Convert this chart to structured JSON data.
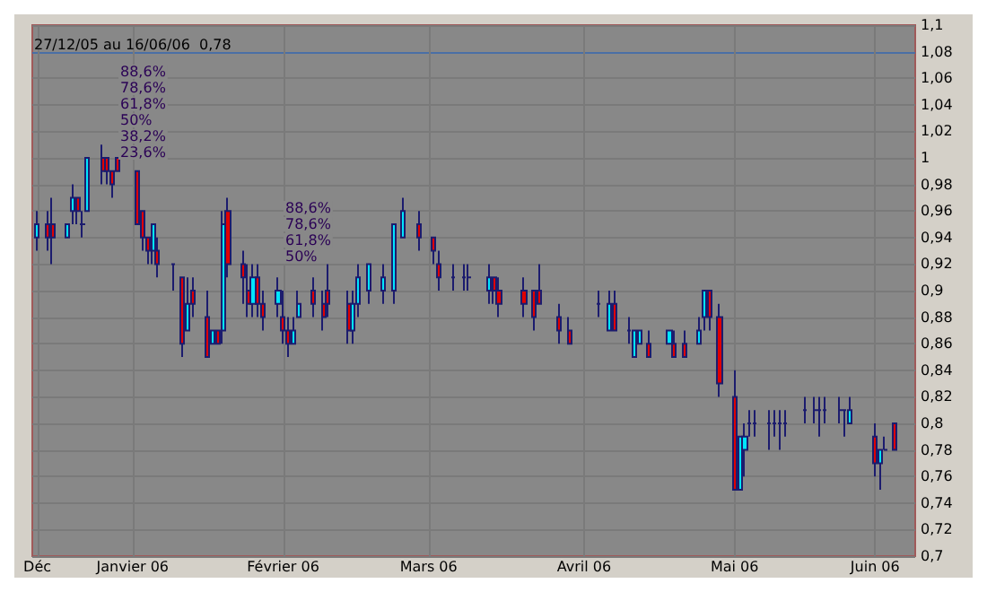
{
  "chart_data": {
    "type": "candlestick",
    "title": "27/12/05 au 16/06/06  0,78",
    "x": [
      "2005-12-27",
      "2005-12-29",
      "2005-12-30",
      "2006-01-02",
      "2006-01-03",
      "2006-01-04",
      "2006-01-05",
      "2006-01-06",
      "2006-01-09",
      "2006-01-10",
      "2006-01-11",
      "2006-01-12",
      "2006-01-16",
      "2006-01-17",
      "2006-01-18",
      "2006-01-19",
      "2006-01-20",
      "2006-01-23",
      "2006-01-25",
      "2006-01-26",
      "2006-01-27",
      "2006-01-30",
      "2006-01-31",
      "2006-02-01",
      "2006-02-02",
      "2006-02-03",
      "2006-02-06",
      "2006-02-07",
      "2006-02-08",
      "2006-02-09",
      "2006-02-10",
      "2006-02-13",
      "2006-02-14",
      "2006-02-15",
      "2006-02-16",
      "2006-02-17",
      "2006-02-20",
      "2006-02-22",
      "2006-02-23",
      "2006-02-27",
      "2006-02-28",
      "2006-03-01",
      "2006-03-03",
      "2006-03-06",
      "2006-03-08",
      "2006-03-10",
      "2006-03-13",
      "2006-03-16",
      "2006-03-17",
      "2006-03-20",
      "2006-03-22",
      "2006-03-23",
      "2006-03-27",
      "2006-03-28",
      "2006-03-29",
      "2006-04-03",
      "2006-04-05",
      "2006-04-06",
      "2006-04-10",
      "2006-04-12",
      "2006-04-18",
      "2006-04-20",
      "2006-04-21",
      "2006-04-24",
      "2006-04-25",
      "2006-04-26",
      "2006-04-28",
      "2006-05-02",
      "2006-05-03",
      "2006-05-05",
      "2006-05-08",
      "2006-05-09",
      "2006-05-10",
      "2006-05-12",
      "2006-05-15",
      "2006-05-16",
      "2006-05-17",
      "2006-05-18",
      "2006-05-19",
      "2006-05-22",
      "2006-05-23",
      "2006-05-24",
      "2006-05-25",
      "2006-05-29",
      "2006-05-31",
      "2006-06-01",
      "2006-06-02",
      "2006-06-05",
      "2006-06-06",
      "2006-06-07",
      "2006-06-12",
      "2006-06-13",
      "2006-06-14",
      "2006-06-16"
    ],
    "ohlc": [
      [
        0.94,
        0.96,
        0.93,
        0.95
      ],
      [
        0.95,
        0.96,
        0.93,
        0.94
      ],
      [
        0.95,
        0.97,
        0.92,
        0.94
      ],
      [
        0.94,
        0.95,
        0.94,
        0.95
      ],
      [
        0.96,
        0.98,
        0.95,
        0.97
      ],
      [
        0.97,
        0.97,
        0.95,
        0.96
      ],
      [
        0.95,
        0.96,
        0.94,
        0.95
      ],
      [
        0.96,
        1.0,
        0.96,
        1.0
      ],
      [
        1.0,
        1.01,
        0.98,
        0.99
      ],
      [
        1.0,
        1.0,
        0.98,
        0.99
      ],
      [
        0.99,
        0.99,
        0.97,
        0.98
      ],
      [
        1.0,
        1.0,
        0.99,
        0.99
      ],
      [
        0.99,
        0.99,
        0.95,
        0.95
      ],
      [
        0.96,
        0.96,
        0.93,
        0.94
      ],
      [
        0.94,
        0.94,
        0.92,
        0.93
      ],
      [
        0.93,
        0.95,
        0.92,
        0.95
      ],
      [
        0.93,
        0.94,
        0.91,
        0.92
      ],
      [
        0.92,
        0.92,
        0.9,
        0.92
      ],
      [
        0.91,
        0.91,
        0.85,
        0.86
      ],
      [
        0.87,
        0.91,
        0.87,
        0.89
      ],
      [
        0.9,
        0.91,
        0.88,
        0.89
      ],
      [
        0.88,
        0.9,
        0.85,
        0.85
      ],
      [
        0.86,
        0.87,
        0.86,
        0.87
      ],
      [
        0.87,
        0.87,
        0.86,
        0.86
      ],
      [
        0.87,
        0.96,
        0.86,
        0.95
      ],
      [
        0.96,
        0.97,
        0.91,
        0.92
      ],
      [
        0.92,
        0.93,
        0.89,
        0.91
      ],
      [
        0.9,
        0.92,
        0.88,
        0.89
      ],
      [
        0.89,
        0.92,
        0.88,
        0.91
      ],
      [
        0.91,
        0.92,
        0.88,
        0.89
      ],
      [
        0.89,
        0.9,
        0.87,
        0.88
      ],
      [
        0.89,
        0.91,
        0.88,
        0.9
      ],
      [
        0.88,
        0.9,
        0.86,
        0.87
      ],
      [
        0.87,
        0.88,
        0.85,
        0.86
      ],
      [
        0.86,
        0.88,
        0.86,
        0.87
      ],
      [
        0.88,
        0.9,
        0.88,
        0.89
      ],
      [
        0.9,
        0.91,
        0.88,
        0.89
      ],
      [
        0.89,
        0.9,
        0.87,
        0.88
      ],
      [
        0.9,
        0.92,
        0.88,
        0.89
      ],
      [
        0.89,
        0.9,
        0.86,
        0.87
      ],
      [
        0.87,
        0.9,
        0.86,
        0.89
      ],
      [
        0.89,
        0.92,
        0.88,
        0.91
      ],
      [
        0.9,
        0.92,
        0.89,
        0.92
      ],
      [
        0.9,
        0.92,
        0.89,
        0.91
      ],
      [
        0.9,
        0.95,
        0.89,
        0.95
      ],
      [
        0.94,
        0.97,
        0.94,
        0.96
      ],
      [
        0.95,
        0.96,
        0.93,
        0.94
      ],
      [
        0.94,
        0.94,
        0.92,
        0.93
      ],
      [
        0.92,
        0.93,
        0.9,
        0.91
      ],
      [
        0.91,
        0.92,
        0.9,
        0.91
      ],
      [
        0.91,
        0.92,
        0.9,
        0.91
      ],
      [
        0.91,
        0.92,
        0.9,
        0.91
      ],
      [
        0.9,
        0.92,
        0.89,
        0.91
      ],
      [
        0.91,
        0.91,
        0.89,
        0.9
      ],
      [
        0.9,
        0.91,
        0.88,
        0.89
      ],
      [
        0.9,
        0.91,
        0.88,
        0.89
      ],
      [
        0.9,
        0.9,
        0.87,
        0.88
      ],
      [
        0.9,
        0.92,
        0.89,
        0.89
      ],
      [
        0.88,
        0.89,
        0.86,
        0.87
      ],
      [
        0.87,
        0.88,
        0.86,
        0.86
      ],
      [
        0.89,
        0.9,
        0.88,
        0.89
      ],
      [
        0.87,
        0.9,
        0.87,
        0.89
      ],
      [
        0.89,
        0.9,
        0.87,
        0.87
      ],
      [
        0.87,
        0.88,
        0.86,
        0.87
      ],
      [
        0.85,
        0.87,
        0.85,
        0.87
      ],
      [
        0.86,
        0.87,
        0.86,
        0.87
      ],
      [
        0.86,
        0.87,
        0.85,
        0.85
      ],
      [
        0.86,
        0.87,
        0.86,
        0.87
      ],
      [
        0.86,
        0.87,
        0.85,
        0.85
      ],
      [
        0.86,
        0.87,
        0.85,
        0.85
      ],
      [
        0.86,
        0.88,
        0.86,
        0.87
      ],
      [
        0.88,
        0.9,
        0.87,
        0.9
      ],
      [
        0.9,
        0.9,
        0.87,
        0.88
      ],
      [
        0.88,
        0.89,
        0.82,
        0.83
      ],
      [
        0.82,
        0.84,
        0.75,
        0.75
      ],
      [
        0.75,
        0.79,
        0.75,
        0.79
      ],
      [
        0.78,
        0.8,
        0.76,
        0.79
      ],
      [
        0.8,
        0.81,
        0.79,
        0.8
      ],
      [
        0.8,
        0.81,
        0.79,
        0.8
      ],
      [
        0.8,
        0.81,
        0.78,
        0.8
      ],
      [
        0.8,
        0.81,
        0.79,
        0.8
      ],
      [
        0.8,
        0.81,
        0.78,
        0.8
      ],
      [
        0.8,
        0.81,
        0.79,
        0.8
      ],
      [
        0.81,
        0.82,
        0.8,
        0.81
      ],
      [
        0.81,
        0.82,
        0.8,
        0.81
      ],
      [
        0.81,
        0.82,
        0.79,
        0.81
      ],
      [
        0.81,
        0.82,
        0.8,
        0.81
      ],
      [
        0.81,
        0.82,
        0.8,
        0.81
      ],
      [
        0.81,
        0.81,
        0.79,
        0.81
      ],
      [
        0.8,
        0.82,
        0.8,
        0.81
      ],
      [
        0.79,
        0.8,
        0.76,
        0.77
      ],
      [
        0.77,
        0.78,
        0.75,
        0.78
      ],
      [
        0.78,
        0.79,
        0.78,
        0.78
      ],
      [
        0.8,
        0.8,
        0.78,
        0.78
      ]
    ],
    "xlim": [
      "2005-12-26",
      "2006-06-20"
    ],
    "xticks": [
      {
        "value": "2005-12-27",
        "label": "Déc"
      },
      {
        "value": "2006-01-15",
        "label": "Janvier 06"
      },
      {
        "value": "2006-02-14",
        "label": "Février 06"
      },
      {
        "value": "2006-03-15",
        "label": "Mars 06"
      },
      {
        "value": "2006-04-15",
        "label": "Avril 06"
      },
      {
        "value": "2006-05-15",
        "label": "Mai 06"
      },
      {
        "value": "2006-06-12",
        "label": "Juin 06"
      }
    ],
    "ylim": [
      0.7,
      1.1
    ],
    "yticks": [
      {
        "value": 0.7,
        "label": "0,7"
      },
      {
        "value": 0.72,
        "label": "0,72"
      },
      {
        "value": 0.74,
        "label": "0,74"
      },
      {
        "value": 0.76,
        "label": "0,76"
      },
      {
        "value": 0.78,
        "label": "0,78"
      },
      {
        "value": 0.8,
        "label": "0,8"
      },
      {
        "value": 0.82,
        "label": "0,82"
      },
      {
        "value": 0.84,
        "label": "0,84"
      },
      {
        "value": 0.86,
        "label": "0,86"
      },
      {
        "value": 0.88,
        "label": "0,88"
      },
      {
        "value": 0.9,
        "label": "0,9"
      },
      {
        "value": 0.92,
        "label": "0,92"
      },
      {
        "value": 0.94,
        "label": "0,94"
      },
      {
        "value": 0.96,
        "label": "0,96"
      },
      {
        "value": 0.98,
        "label": "0,98"
      },
      {
        "value": 1,
        "label": "1"
      },
      {
        "value": 1.02,
        "label": "1,02"
      },
      {
        "value": 1.04,
        "label": "1,04"
      },
      {
        "value": 1.06,
        "label": "1,06"
      },
      {
        "value": 1.08,
        "label": "1,08"
      },
      {
        "value": 1.1,
        "label": "1,1"
      }
    ],
    "ref_lines": [
      {
        "axis": "y",
        "value": 1.08,
        "color": "#4a6fa5"
      }
    ],
    "annotations": [
      "88,6%",
      "78,6%",
      "61,8%",
      "50%",
      "38,2%",
      "23,6%",
      "88,6%",
      "78,6%",
      "61,8%",
      "50%"
    ],
    "grid": true
  }
}
